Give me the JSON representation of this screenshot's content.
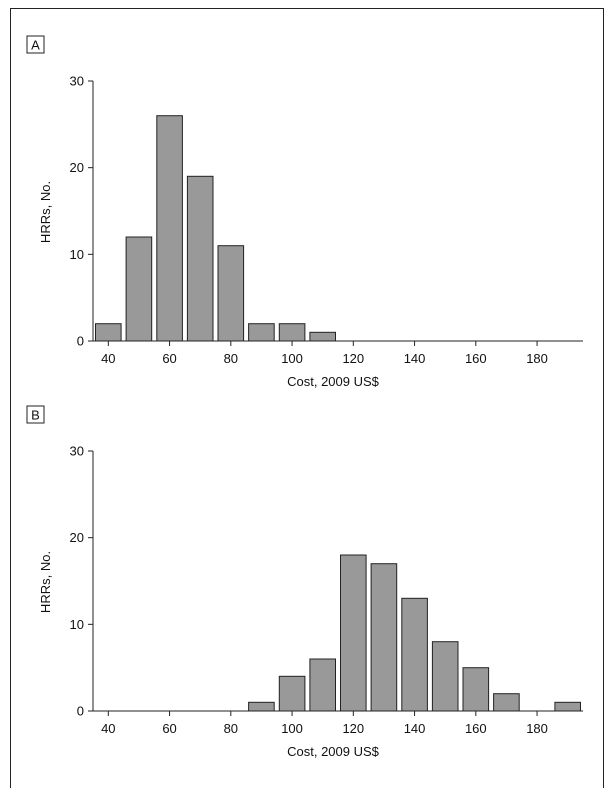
{
  "chart_data": [
    {
      "type": "bar",
      "panel_label": "A",
      "xlabel": "Cost, 2009 US$",
      "ylabel": "HRRs, No.",
      "x": [
        40,
        50,
        60,
        70,
        80,
        90,
        100,
        110,
        120,
        130,
        140,
        150,
        160,
        170,
        180,
        190
      ],
      "values": [
        2,
        12,
        26,
        19,
        11,
        2,
        2,
        1,
        0,
        0,
        0,
        0,
        0,
        0,
        0,
        0
      ],
      "xticks": [
        "40",
        "60",
        "80",
        "100",
        "120",
        "140",
        "160",
        "180"
      ],
      "yticks": [
        "0",
        "10",
        "20",
        "30"
      ],
      "ylim": [
        0,
        30
      ],
      "xlim": [
        35,
        195
      ],
      "bar_color": "#999999",
      "grid": false
    },
    {
      "type": "bar",
      "panel_label": "B",
      "xlabel": "Cost, 2009 US$",
      "ylabel": "HRRs, No.",
      "x": [
        40,
        50,
        60,
        70,
        80,
        90,
        100,
        110,
        120,
        130,
        140,
        150,
        160,
        170,
        180,
        190
      ],
      "values": [
        0,
        0,
        0,
        0,
        0,
        1,
        4,
        6,
        18,
        17,
        13,
        8,
        5,
        2,
        0,
        1
      ],
      "xticks": [
        "40",
        "60",
        "80",
        "100",
        "120",
        "140",
        "160",
        "180"
      ],
      "yticks": [
        "0",
        "10",
        "20",
        "30"
      ],
      "ylim": [
        0,
        30
      ],
      "xlim": [
        35,
        195
      ],
      "bar_color": "#999999",
      "grid": false
    }
  ]
}
